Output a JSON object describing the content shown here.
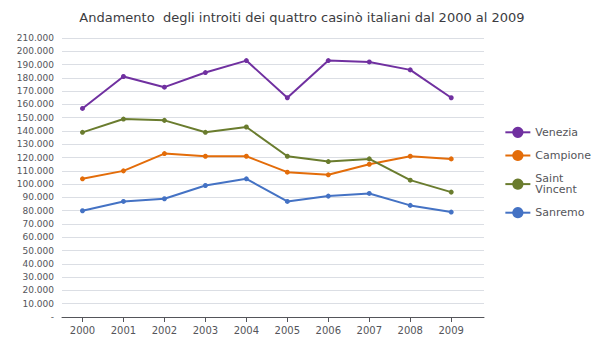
{
  "chart_data": {
    "type": "line",
    "title": "Andamento  degli introiti dei quattro casinò italiani dal 2000 al 2009",
    "x": [
      2000,
      2001,
      2002,
      2003,
      2004,
      2005,
      2006,
      2007,
      2008,
      2009
    ],
    "xlim": [
      1999.5,
      2009.8
    ],
    "xticks": [
      2000,
      2001,
      2002,
      2003,
      2004,
      2005,
      2006,
      2007,
      2008,
      2009
    ],
    "ylim": [
      0,
      210000
    ],
    "yticks": [
      {
        "value": 0,
        "label": "-"
      },
      {
        "value": 10000,
        "label": "10.000"
      },
      {
        "value": 20000,
        "label": "20.000"
      },
      {
        "value": 30000,
        "label": "30.000"
      },
      {
        "value": 40000,
        "label": "40.000"
      },
      {
        "value": 50000,
        "label": "50.000"
      },
      {
        "value": 60000,
        "label": "60.000"
      },
      {
        "value": 70000,
        "label": "70.000"
      },
      {
        "value": 80000,
        "label": "80.000"
      },
      {
        "value": 90000,
        "label": "90.000"
      },
      {
        "value": 100000,
        "label": "100.000"
      },
      {
        "value": 110000,
        "label": "110.000"
      },
      {
        "value": 120000,
        "label": "120.000"
      },
      {
        "value": 130000,
        "label": "130.000"
      },
      {
        "value": 140000,
        "label": "140.000"
      },
      {
        "value": 150000,
        "label": "150.000"
      },
      {
        "value": 160000,
        "label": "160.000"
      },
      {
        "value": 170000,
        "label": "170.000"
      },
      {
        "value": 180000,
        "label": "180.000"
      },
      {
        "value": 190000,
        "label": "190.000"
      },
      {
        "value": 200000,
        "label": "200.000"
      },
      {
        "value": 210000,
        "label": "210.000"
      }
    ],
    "grid": true,
    "legend": "right",
    "marker": "circle",
    "series": [
      {
        "name": "Venezia",
        "color": "#7030a0",
        "values": [
          157000,
          181000,
          173000,
          184000,
          193000,
          165000,
          193000,
          192000,
          186000,
          165000
        ]
      },
      {
        "name": "Campione",
        "color": "#e36c09",
        "values": [
          104000,
          110000,
          123000,
          121000,
          121000,
          109000,
          107000,
          115000,
          121000,
          119000
        ]
      },
      {
        "name": "Saint\nVincent",
        "color": "#6a7c2e",
        "values": [
          139000,
          149000,
          148000,
          139000,
          143000,
          121000,
          117000,
          119000,
          103000,
          94000
        ]
      },
      {
        "name": "Sanremo",
        "color": "#4472c4",
        "values": [
          80000,
          87000,
          89000,
          99000,
          104000,
          87000,
          91000,
          93000,
          84000,
          79000
        ]
      }
    ]
  }
}
